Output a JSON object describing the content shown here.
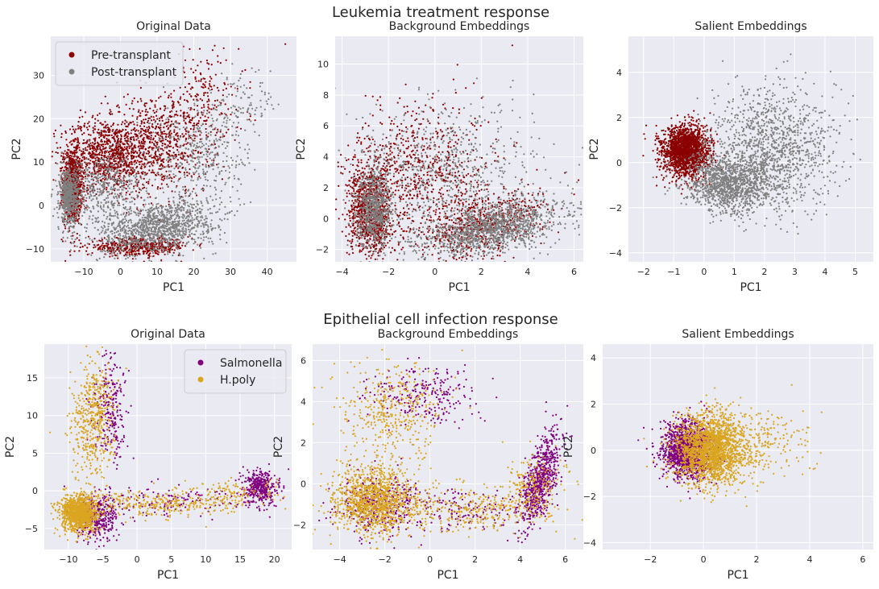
{
  "figure": {
    "row_titles": [
      "Leukemia treatment response",
      "Epithelial cell infection response"
    ]
  },
  "chart_data": [
    {
      "type": "scatter",
      "group": 0,
      "title": "Original Data",
      "xlabel": "PC1",
      "ylabel": "PC2",
      "xlim": [
        -19,
        48
      ],
      "ylim": [
        -13,
        39
      ],
      "xticks": [
        -10,
        0,
        10,
        20,
        30,
        40
      ],
      "yticks": [
        -10,
        0,
        10,
        20,
        30
      ],
      "legend": {
        "position": "top-left",
        "entries": [
          "Pre-transplant",
          "Post-transplant"
        ]
      },
      "series": [
        {
          "name": "Pre-transplant",
          "color": "#8b0000",
          "clusters": [
            {
              "n": 900,
              "cx": -13,
              "cy": 4,
              "sx": 1.3,
              "sy": 4
            },
            {
              "n": 900,
              "cx": -4,
              "cy": 12,
              "sx": 6,
              "sy": 4
            },
            {
              "n": 700,
              "cx": 10,
              "cy": 14,
              "sx": 7,
              "sy": 6
            },
            {
              "n": 200,
              "cx": 22,
              "cy": 24,
              "sx": 6,
              "sy": 6
            },
            {
              "n": 500,
              "cx": 5,
              "cy": -9.5,
              "sx": 7,
              "sy": 1
            },
            {
              "n": 1,
              "cx": 45,
              "cy": 37,
              "sx": 0.1,
              "sy": 0.1
            },
            {
              "n": 1,
              "cx": 32,
              "cy": 36,
              "sx": 0.1,
              "sy": 0.1
            }
          ]
        },
        {
          "name": "Post-transplant",
          "color": "#808080",
          "clusters": [
            {
              "n": 600,
              "cx": -14,
              "cy": 2,
              "sx": 1.2,
              "sy": 3
            },
            {
              "n": 500,
              "cx": -5,
              "cy": 4,
              "sx": 6,
              "sy": 4
            },
            {
              "n": 1200,
              "cx": 10,
              "cy": -5,
              "sx": 8,
              "sy": 3,
              "tilt": 0.35
            },
            {
              "n": 400,
              "cx": 22,
              "cy": 12,
              "sx": 7,
              "sy": 6
            },
            {
              "n": 80,
              "cx": 35,
              "cy": 25,
              "sx": 5,
              "sy": 4
            }
          ]
        }
      ]
    },
    {
      "type": "scatter",
      "group": 0,
      "title": "Background Embeddings",
      "xlabel": "PC1",
      "ylabel": "PC2",
      "xlim": [
        -4.3,
        6.4
      ],
      "ylim": [
        -2.8,
        11.8
      ],
      "xticks": [
        -4,
        -2,
        0,
        2,
        4,
        6
      ],
      "yticks": [
        -2,
        0,
        2,
        4,
        6,
        8,
        10
      ],
      "series": [
        {
          "name": "Pre-transplant",
          "color": "#8b0000",
          "clusters": [
            {
              "n": 1000,
              "cx": -2.8,
              "cy": 0.5,
              "sx": 0.45,
              "sy": 1.5
            },
            {
              "n": 700,
              "cx": -0.5,
              "cy": 3,
              "sx": 1.6,
              "sy": 2.2
            },
            {
              "n": 600,
              "cx": 2,
              "cy": -0.5,
              "sx": 1.3,
              "sy": 0.9,
              "tilt": 0.5
            },
            {
              "n": 1,
              "cx": 3.3,
              "cy": 11.2,
              "sx": 0.05,
              "sy": 0.05
            }
          ]
        },
        {
          "name": "Post-transplant",
          "color": "#808080",
          "clusters": [
            {
              "n": 700,
              "cx": -2.6,
              "cy": 0.6,
              "sx": 0.4,
              "sy": 1.2
            },
            {
              "n": 700,
              "cx": 0.5,
              "cy": 3,
              "sx": 2,
              "sy": 2.3
            },
            {
              "n": 1300,
              "cx": 2.5,
              "cy": -0.6,
              "sx": 1.5,
              "sy": 0.8,
              "tilt": 0.55
            }
          ]
        }
      ]
    },
    {
      "type": "scatter",
      "group": 0,
      "title": "Salient Embeddings",
      "xlabel": "PC1",
      "ylabel": "PC2",
      "xlim": [
        -2.5,
        5.6
      ],
      "ylim": [
        -4.4,
        5.6
      ],
      "xticks": [
        -2,
        -1,
        0,
        1,
        2,
        3,
        4,
        5
      ],
      "yticks": [
        -4,
        -2,
        0,
        2,
        4
      ],
      "series": [
        {
          "name": "Pre-transplant",
          "color": "#8b0000",
          "clusters": [
            {
              "n": 2000,
              "cx": -0.6,
              "cy": 0.5,
              "sx": 0.38,
              "sy": 0.55
            }
          ]
        },
        {
          "name": "Post-transplant",
          "color": "#808080",
          "clusters": [
            {
              "n": 1200,
              "cx": 0.8,
              "cy": -0.9,
              "sx": 0.7,
              "sy": 0.6
            },
            {
              "n": 1200,
              "cx": 2.3,
              "cy": 0.6,
              "sx": 1,
              "sy": 1.4
            }
          ]
        }
      ]
    },
    {
      "type": "scatter",
      "group": 1,
      "title": "Original Data",
      "xlabel": "PC1",
      "ylabel": "PC2",
      "xlim": [
        -13.5,
        22.5
      ],
      "ylim": [
        -7.8,
        19.5
      ],
      "xticks": [
        -10,
        -5,
        0,
        5,
        10,
        15,
        20
      ],
      "yticks": [
        -5,
        0,
        5,
        10,
        15
      ],
      "legend": {
        "position": "top-right",
        "entries": [
          "Salmonella",
          "H.poly"
        ]
      },
      "series": [
        {
          "name": "Salmonella",
          "color": "#800080",
          "clusters": [
            {
              "n": 400,
              "cx": 18,
              "cy": 0.5,
              "sx": 1.2,
              "sy": 1
            },
            {
              "n": 400,
              "cx": -6,
              "cy": -3.5,
              "sx": 1.6,
              "sy": 1.5
            },
            {
              "n": 250,
              "cx": -4,
              "cy": 11,
              "sx": 1.2,
              "sy": 3.5
            },
            {
              "n": 150,
              "cx": 5,
              "cy": -1.5,
              "sx": 7,
              "sy": 1.2
            }
          ]
        },
        {
          "name": "H.poly",
          "color": "#daa520",
          "clusters": [
            {
              "n": 1200,
              "cx": -8.5,
              "cy": -3,
              "sx": 1.3,
              "sy": 1.2
            },
            {
              "n": 500,
              "cx": -6.5,
              "cy": 9,
              "sx": 1.5,
              "sy": 4
            },
            {
              "n": 300,
              "cx": 3,
              "cy": -1.8,
              "sx": 5,
              "sy": 0.9
            },
            {
              "n": 120,
              "cx": 14,
              "cy": -0.5,
              "sx": 3,
              "sy": 1
            }
          ]
        }
      ]
    },
    {
      "type": "scatter",
      "group": 1,
      "title": "Background Embeddings",
      "xlabel": "PC1",
      "ylabel": "PC2",
      "xlim": [
        -5.2,
        6.8
      ],
      "ylim": [
        -3.2,
        6.8
      ],
      "xticks": [
        -4,
        -2,
        0,
        2,
        4,
        6
      ],
      "yticks": [
        -2,
        0,
        2,
        4,
        6
      ],
      "series": [
        {
          "name": "Salmonella",
          "color": "#800080",
          "clusters": [
            {
              "n": 700,
              "cx": 4.9,
              "cy": 0.2,
              "sx": 0.45,
              "sy": 0.9,
              "tilt": 0.8
            },
            {
              "n": 350,
              "cx": -2.2,
              "cy": -1,
              "sx": 0.9,
              "sy": 0.7
            },
            {
              "n": 250,
              "cx": -0.3,
              "cy": 4.3,
              "sx": 1.1,
              "sy": 0.7
            },
            {
              "n": 150,
              "cx": 1.5,
              "cy": -1.3,
              "sx": 1.5,
              "sy": 0.5
            }
          ]
        },
        {
          "name": "H.poly",
          "color": "#daa520",
          "clusters": [
            {
              "n": 1200,
              "cx": -2.5,
              "cy": -0.8,
              "sx": 0.9,
              "sy": 0.8
            },
            {
              "n": 400,
              "cx": -1.7,
              "cy": 3.5,
              "sx": 1.1,
              "sy": 1.2
            },
            {
              "n": 350,
              "cx": 1.5,
              "cy": -1.2,
              "sx": 1.8,
              "sy": 0.6
            },
            {
              "n": 200,
              "cx": 4.5,
              "cy": -0.3,
              "sx": 0.7,
              "sy": 0.8
            }
          ]
        }
      ]
    },
    {
      "type": "scatter",
      "group": 1,
      "title": "Salient Embeddings",
      "xlabel": "PC1",
      "ylabel": "PC2",
      "xlim": [
        -3.8,
        6.4
      ],
      "ylim": [
        -4.3,
        4.6
      ],
      "xticks": [
        -2,
        0,
        2,
        4,
        6
      ],
      "yticks": [
        -4,
        -2,
        0,
        2,
        4
      ],
      "series": [
        {
          "name": "Salmonella",
          "color": "#800080",
          "clusters": [
            {
              "n": 1500,
              "cx": -0.6,
              "cy": 0,
              "sx": 0.45,
              "sy": 0.6
            }
          ]
        },
        {
          "name": "H.poly",
          "color": "#daa520",
          "clusters": [
            {
              "n": 2000,
              "cx": 0.3,
              "cy": 0,
              "sx": 0.65,
              "sy": 0.75
            },
            {
              "n": 250,
              "cx": 2,
              "cy": 0.3,
              "sx": 1.1,
              "sy": 0.8
            }
          ]
        }
      ]
    }
  ]
}
